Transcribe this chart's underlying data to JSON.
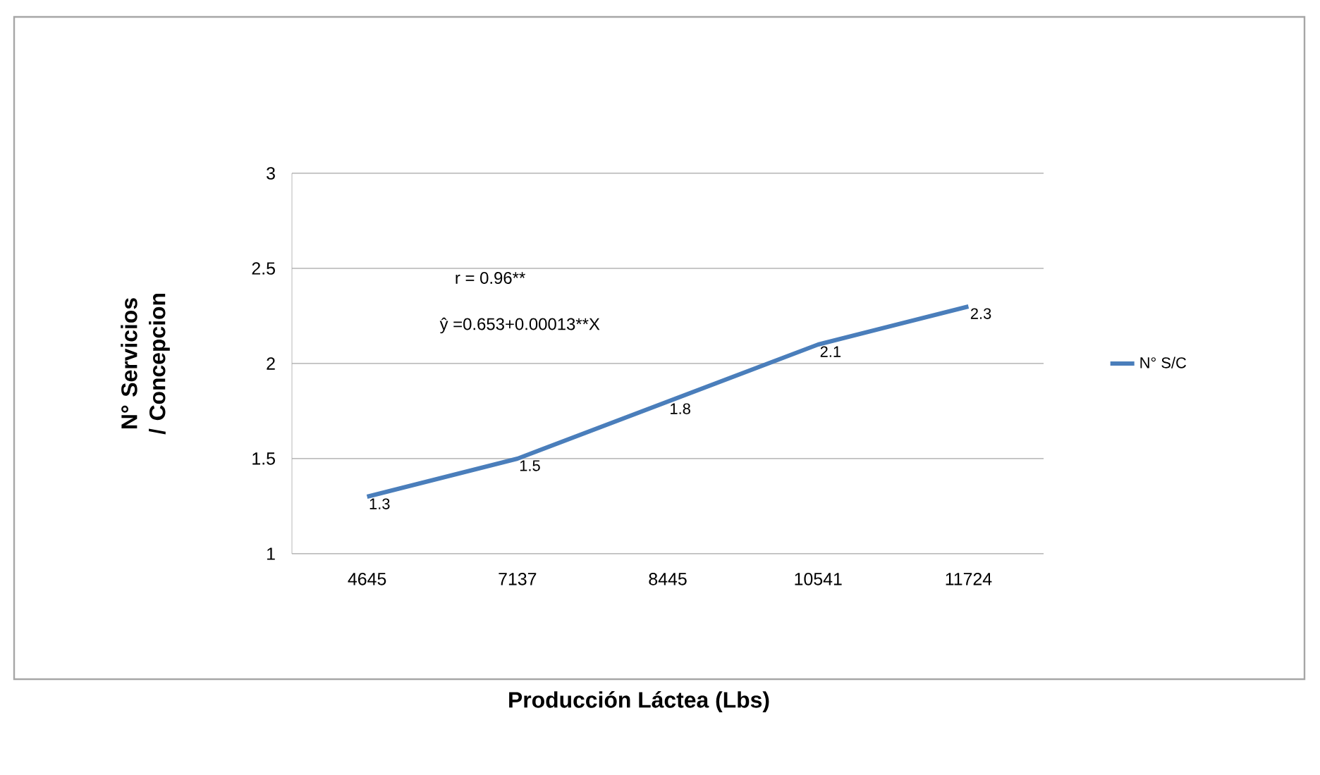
{
  "chart_data": {
    "type": "line",
    "xlabel": "Producción Láctea (Lbs)",
    "ylabel": "N° Servicios / Concepcion",
    "categories": [
      "4645",
      "7137",
      "8445",
      "10541",
      "11724"
    ],
    "series": [
      {
        "name": "N° S/C",
        "color": "#4a7ebb",
        "values": [
          1.3,
          1.5,
          1.8,
          2.1,
          2.3
        ],
        "value_labels": [
          "1.3",
          "1.5",
          "1.8",
          "2.1",
          "2.3"
        ]
      }
    ],
    "ylim": [
      1,
      3
    ],
    "yticks": [
      1,
      1.5,
      2,
      2.5,
      3
    ],
    "grid": "y",
    "legend": "right",
    "marker": "none",
    "line_style": "solid",
    "annotations": [
      "r = 0.96**",
      "ŷ =0.653+0.00013**X"
    ]
  }
}
